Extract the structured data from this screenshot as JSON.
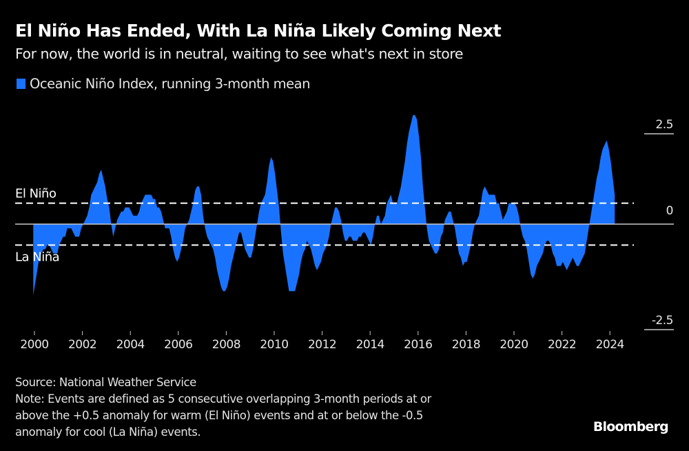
{
  "header": {
    "title": "El Niño Has Ended, With La Niña Likely Coming Next",
    "subtitle": "For now, the world is in neutral, waiting to see what's next in store"
  },
  "legend": {
    "label": "Oceanic Niño Index, running 3-month mean",
    "color": "#1a73ff"
  },
  "footer": {
    "source": "Source: National Weather Service",
    "note_lines": [
      "Note: Events are defined as 5 consecutive overlapping 3-month periods at or",
      "above the +0.5 anomaly for warm (El Niño) events and at or below the -0.5",
      "anomaly for cool (La Niña) events."
    ],
    "brand": "Bloomberg"
  },
  "chart_data": {
    "type": "area",
    "title": "El Niño Has Ended, With La Niña Likely Coming Next",
    "subtitle": "For now, the world is in neutral, waiting to see what's next in store",
    "xlabel": "",
    "ylabel": "",
    "x_start": 2000.0,
    "x_step_months": 1,
    "xlim": [
      2000,
      2025
    ],
    "ylim": [
      -2.5,
      2.5
    ],
    "x_ticks": [
      "2000",
      "2002",
      "2004",
      "2006",
      "2008",
      "2010",
      "2012",
      "2014",
      "2016",
      "2018",
      "2020",
      "2022",
      "2024"
    ],
    "y_ticks": [
      "2.5",
      "0",
      "-2.5"
    ],
    "grid": false,
    "legend_position": "top-left",
    "reference_lines": [
      {
        "label": "El Niño",
        "value": 0.5,
        "style": "dashed"
      },
      {
        "label": "La Niña",
        "value": -0.5,
        "style": "dashed"
      },
      {
        "label": "",
        "value": 0,
        "style": "solid"
      }
    ],
    "series": [
      {
        "name": "Oceanic Niño Index, running 3-month mean",
        "color": "#1a73ff",
        "values": [
          -1.7,
          -1.4,
          -1.1,
          -0.8,
          -0.7,
          -0.6,
          -0.6,
          -0.5,
          -0.5,
          -0.6,
          -0.7,
          -0.7,
          -0.7,
          -0.5,
          -0.4,
          -0.3,
          -0.3,
          -0.1,
          -0.1,
          -0.1,
          -0.2,
          -0.3,
          -0.3,
          -0.3,
          -0.1,
          0.0,
          0.1,
          0.2,
          0.4,
          0.7,
          0.8,
          0.9,
          1.0,
          1.2,
          1.3,
          1.1,
          0.9,
          0.6,
          0.4,
          0.0,
          -0.3,
          -0.1,
          0.1,
          0.2,
          0.3,
          0.3,
          0.4,
          0.4,
          0.4,
          0.3,
          0.2,
          0.2,
          0.2,
          0.3,
          0.5,
          0.6,
          0.7,
          0.7,
          0.7,
          0.7,
          0.6,
          0.6,
          0.4,
          0.4,
          0.3,
          0.1,
          -0.1,
          -0.1,
          -0.1,
          -0.3,
          -0.6,
          -0.8,
          -0.9,
          -0.8,
          -0.6,
          -0.4,
          -0.1,
          0.0,
          0.1,
          0.3,
          0.5,
          0.8,
          0.9,
          0.9,
          0.7,
          0.2,
          -0.1,
          -0.3,
          -0.4,
          -0.5,
          -0.6,
          -0.8,
          -1.1,
          -1.3,
          -1.5,
          -1.6,
          -1.6,
          -1.5,
          -1.3,
          -1.0,
          -0.8,
          -0.6,
          -0.4,
          -0.2,
          -0.2,
          -0.4,
          -0.6,
          -0.7,
          -0.8,
          -0.8,
          -0.6,
          -0.3,
          0.0,
          0.3,
          0.5,
          0.6,
          0.7,
          1.0,
          1.4,
          1.6,
          1.5,
          1.2,
          0.8,
          0.4,
          -0.2,
          -0.7,
          -1.0,
          -1.3,
          -1.6,
          -1.6,
          -1.6,
          -1.6,
          -1.4,
          -1.2,
          -0.9,
          -0.7,
          -0.6,
          -0.4,
          -0.5,
          -0.6,
          -0.8,
          -1.0,
          -1.1,
          -1.0,
          -0.9,
          -0.7,
          -0.6,
          -0.5,
          -0.3,
          0.0,
          0.2,
          0.4,
          0.4,
          0.3,
          0.1,
          -0.2,
          -0.4,
          -0.4,
          -0.3,
          -0.3,
          -0.4,
          -0.4,
          -0.4,
          -0.3,
          -0.3,
          -0.2,
          -0.2,
          -0.3,
          -0.4,
          -0.5,
          -0.3,
          0.0,
          0.2,
          0.2,
          0.0,
          0.1,
          0.2,
          0.5,
          0.6,
          0.7,
          0.5,
          0.5,
          0.5,
          0.7,
          0.9,
          1.2,
          1.5,
          1.9,
          2.2,
          2.4,
          2.6,
          2.6,
          2.5,
          2.1,
          1.6,
          0.9,
          0.4,
          -0.1,
          -0.4,
          -0.5,
          -0.6,
          -0.7,
          -0.7,
          -0.6,
          -0.3,
          -0.2,
          0.1,
          0.2,
          0.3,
          0.3,
          0.1,
          -0.1,
          -0.4,
          -0.7,
          -0.8,
          -1.0,
          -0.9,
          -0.9,
          -0.7,
          -0.5,
          -0.2,
          0.0,
          0.1,
          0.2,
          0.5,
          0.8,
          0.9,
          0.8,
          0.7,
          0.7,
          0.7,
          0.7,
          0.5,
          0.5,
          0.3,
          0.1,
          0.2,
          0.3,
          0.5,
          0.5,
          0.5,
          0.5,
          0.4,
          0.2,
          -0.1,
          -0.3,
          -0.4,
          -0.6,
          -0.9,
          -1.2,
          -1.3,
          -1.2,
          -1.0,
          -0.9,
          -0.8,
          -0.7,
          -0.5,
          -0.4,
          -0.4,
          -0.5,
          -0.7,
          -0.8,
          -1.0,
          -1.0,
          -1.0,
          -0.9,
          -1.0,
          -1.1,
          -1.0,
          -0.9,
          -0.8,
          -0.9,
          -1.0,
          -1.0,
          -0.9,
          -0.8,
          -0.7,
          -0.4,
          -0.1,
          0.2,
          0.5,
          0.8,
          1.1,
          1.3,
          1.6,
          1.8,
          1.9,
          2.0,
          1.8,
          1.5,
          1.1,
          0.7
        ]
      }
    ]
  }
}
